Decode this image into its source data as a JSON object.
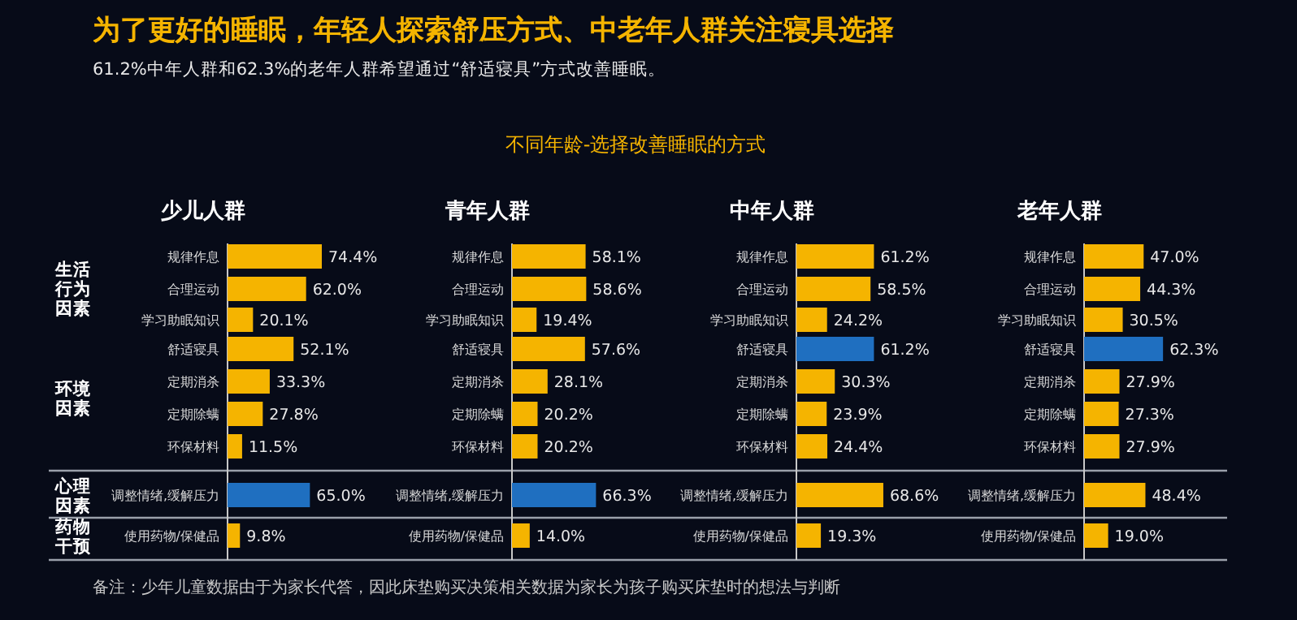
{
  "chart_data": [
    {
      "type": "other",
      "title": "为了更好的睡眠，年轻人探索舒压方式、中老年人群关注寝具选择",
      "subtitle": "61.2%中年人群和62.3%的老年人群希望通过“舒适寝具”方式改善睡眠。",
      "annotations": [
        "不同年龄-选择改善睡眠的方式",
        "备注：少年儿童数据由于为家长代答，因此床垫购买决策相关数据为家长为孩子购买床垫时的想法与判断"
      ]
    },
    {
      "type": "bar",
      "orientation": "horizontal",
      "title": "少儿人群",
      "annotations": [
        "生活行为因素",
        "环境因素",
        "心理因素",
        "药物干预"
      ],
      "categories": [
        "规律作息",
        "合理运动",
        "学习助眠知识",
        "舒适寝具",
        "定期消杀",
        "定期除螨",
        "环保材料",
        "调整情绪,缓解压力",
        "使用药物/保健品"
      ],
      "values": [
        74.4,
        62.0,
        20.1,
        52.1,
        33.3,
        27.8,
        11.5,
        65.0,
        9.8
      ],
      "value_labels": [
        "74.4%",
        "62.0%",
        "20.1%",
        "52.1%",
        "33.3%",
        "27.8%",
        "11.5%",
        "65.0%",
        "9.8%"
      ],
      "colors": [
        "#f5b400",
        "#f5b400",
        "#f5b400",
        "#f5b400",
        "#f5b400",
        "#f5b400",
        "#f5b400",
        "#1f6fc0",
        "#f5b400"
      ]
    },
    {
      "type": "bar",
      "orientation": "horizontal",
      "title": "青年人群",
      "categories": [
        "规律作息",
        "合理运动",
        "学习助眠知识",
        "舒适寝具",
        "定期消杀",
        "定期除螨",
        "环保材料",
        "调整情绪,缓解压力",
        "使用药物/保健品"
      ],
      "values": [
        58.1,
        58.6,
        19.4,
        57.6,
        28.1,
        20.2,
        20.2,
        66.3,
        14.0
      ],
      "value_labels": [
        "58.1%",
        "58.6%",
        "19.4%",
        "57.6%",
        "28.1%",
        "20.2%",
        "20.2%",
        "66.3%",
        "14.0%"
      ],
      "colors": [
        "#f5b400",
        "#f5b400",
        "#f5b400",
        "#f5b400",
        "#f5b400",
        "#f5b400",
        "#f5b400",
        "#1f6fc0",
        "#f5b400"
      ]
    },
    {
      "type": "bar",
      "orientation": "horizontal",
      "title": "中年人群",
      "categories": [
        "规律作息",
        "合理运动",
        "学习助眠知识",
        "舒适寝具",
        "定期消杀",
        "定期除螨",
        "环保材料",
        "调整情绪,缓解压力",
        "使用药物/保健品"
      ],
      "values": [
        61.2,
        58.5,
        24.2,
        61.2,
        30.3,
        23.9,
        24.4,
        68.6,
        19.3
      ],
      "value_labels": [
        "61.2%",
        "58.5%",
        "24.2%",
        "61.2%",
        "30.3%",
        "23.9%",
        "24.4%",
        "68.6%",
        "19.3%"
      ],
      "colors": [
        "#f5b400",
        "#f5b400",
        "#f5b400",
        "#1f6fc0",
        "#f5b400",
        "#f5b400",
        "#f5b400",
        "#f5b400",
        "#f5b400"
      ]
    },
    {
      "type": "bar",
      "orientation": "horizontal",
      "title": "老年人群",
      "categories": [
        "规律作息",
        "合理运动",
        "学习助眠知识",
        "舒适寝具",
        "定期消杀",
        "定期除螨",
        "环保材料",
        "调整情绪,缓解压力",
        "使用药物/保健品"
      ],
      "values": [
        47.0,
        44.3,
        30.5,
        62.3,
        27.9,
        27.3,
        27.9,
        48.4,
        19.0
      ],
      "value_labels": [
        "47.0%",
        "44.3%",
        "30.5%",
        "62.3%",
        "27.9%",
        "27.3%",
        "27.9%",
        "48.4%",
        "19.0%"
      ],
      "colors": [
        "#f5b400",
        "#f5b400",
        "#f5b400",
        "#1f6fc0",
        "#f5b400",
        "#f5b400",
        "#f5b400",
        "#f5b400",
        "#f5b400"
      ]
    }
  ]
}
